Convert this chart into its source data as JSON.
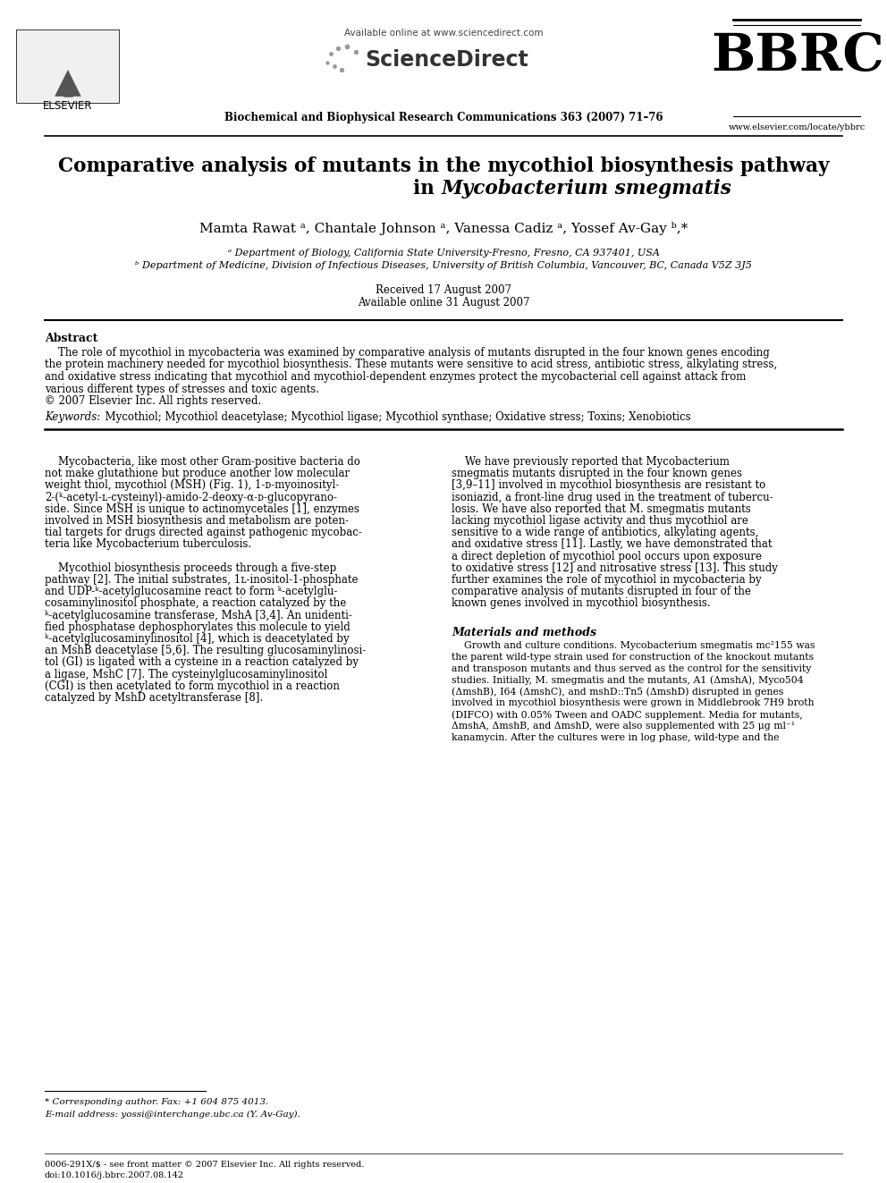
{
  "bg_color": "#ffffff",
  "header_available": "Available online at www.sciencedirect.com",
  "header_journal": "Biochemical and Biophysical Research Communications 363 (2007) 71–76",
  "header_bbrc": "BBRC",
  "header_website": "www.elsevier.com/locate/ybbrc",
  "header_sciencedirect": "ScienceDirect",
  "header_elsevier": "ELSEVIER",
  "title_line1": "Comparative analysis of mutants in the mycothiol biosynthesis pathway",
  "title_line2_normal": "in ",
  "title_line2_italic": "Mycobacterium smegmatis",
  "authors": "Mamta Rawat ᵃ, Chantale Johnson ᵃ, Vanessa Cadiz ᵃ, Yossef Av-Gay ᵇ,*",
  "affil_a": "ᵃ Department of Biology, California State University-Fresno, Fresno, CA 937401, USA",
  "affil_b": "ᵇ Department of Medicine, Division of Infectious Diseases, University of British Columbia, Vancouver, BC, Canada V5Z 3J5",
  "received": "Received 17 August 2007",
  "available_online": "Available online 31 August 2007",
  "abstract_title": "Abstract",
  "copyright": "© 2007 Elsevier Inc. All rights reserved.",
  "keywords_italic": "Keywords:",
  "keywords_normal": "  Mycothiol; Mycothiol deacetylase; Mycothiol ligase; Mycothiol synthase; Oxidative stress; Toxins; Xenobiotics",
  "footnote_star": "* Corresponding author. Fax: +1 604 875 4013.",
  "footnote_email": "E-mail address: yossi@interchange.ubc.ca (Y. Av-Gay).",
  "footer1": "0006-291X/$ - see front matter © 2007 Elsevier Inc. All rights reserved.",
  "footer2": "doi:10.1016/j.bbrc.2007.08.142",
  "abstract_lines": [
    "    The role of mycothiol in mycobacteria was examined by comparative analysis of mutants disrupted in the four known genes encoding",
    "the protein machinery needed for mycothiol biosynthesis. These mutants were sensitive to acid stress, antibiotic stress, alkylating stress,",
    "and oxidative stress indicating that mycothiol and mycothiol-dependent enzymes protect the mycobacterial cell against attack from",
    "various different types of stresses and toxic agents."
  ],
  "left_col_lines": [
    "    Mycobacteria, like most other Gram-positive bacteria do",
    "not make glutathione but produce another low molecular",
    "weight thiol, mycothiol (MSH) (Fig. 1), 1-ᴅ-myoinosityl-",
    "2-(ᵏ-acetyl-ʟ-cysteinyl)-amido-2-deoxy-α-ᴅ-glucopyrano-",
    "side. Since MSH is unique to actinomycetales [1], enzymes",
    "involved in MSH biosynthesis and metabolism are poten-",
    "tial targets for drugs directed against pathogenic mycobac-",
    "teria like Mycobacterium tuberculosis.",
    "",
    "    Mycothiol biosynthesis proceeds through a five-step",
    "pathway [2]. The initial substrates, 1ʟ-inositol-1-phosphate",
    "and UDP-ᵏ-acetylglucosamine react to form ᵏ-acetylglu-",
    "cosaminylinositol phosphate, a reaction catalyzed by the",
    "ᵏ-acetylglucosamine transferase, MshA [3,4]. An unidenti-",
    "fied phosphatase dephosphorylates this molecule to yield",
    "ᵏ-acetylglucosaminylinositol [4], which is deacetylated by",
    "an MshB deacetylase [5,6]. The resulting glucosaminylinosi-",
    "tol (GI) is ligated with a cysteine in a reaction catalyzed by",
    "a ligase, MshC [7]. The cysteinylglucosaminylinositol",
    "(CGI) is then acetylated to form mycothiol in a reaction",
    "catalyzed by MshD acetyltransferase [8]."
  ],
  "right_col_lines": [
    "    We have previously reported that Mycobacterium",
    "smegmatis mutants disrupted in the four known genes",
    "[3,9–11] involved in mycothiol biosynthesis are resistant to",
    "isoniazid, a front-line drug used in the treatment of tubercu-",
    "losis. We have also reported that M. smegmatis mutants",
    "lacking mycothiol ligase activity and thus mycothiol are",
    "sensitive to a wide range of antibiotics, alkylating agents,",
    "and oxidative stress [11]. Lastly, we have demonstrated that",
    "a direct depletion of mycothiol pool occurs upon exposure",
    "to oxidative stress [12] and nitrosative stress [13]. This study",
    "further examines the role of mycothiol in mycobacteria by",
    "comparative analysis of mutants disrupted in four of the",
    "known genes involved in mycothiol biosynthesis."
  ],
  "mat_title": "Materials and methods",
  "mat_lines": [
    "    Growth and culture conditions. Mycobacterium smegmatis mc²155 was",
    "the parent wild-type strain used for construction of the knockout mutants",
    "and transposon mutants and thus served as the control for the sensitivity",
    "studies. Initially, M. smegmatis and the mutants, A1 (ΔmshA), Myco504",
    "(ΔmshB), I64 (ΔmshC), and mshD::Tn5 (ΔmshD) disrupted in genes",
    "involved in mycothiol biosynthesis were grown in Middlebrook 7H9 broth",
    "(DIFCO) with 0.05% Tween and OADC supplement. Media for mutants,",
    "ΔmshA, ΔmshB, and ΔmshD, were also supplemented with 25 μg ml⁻¹",
    "kanamycin. After the cultures were in log phase, wild-type and the"
  ]
}
